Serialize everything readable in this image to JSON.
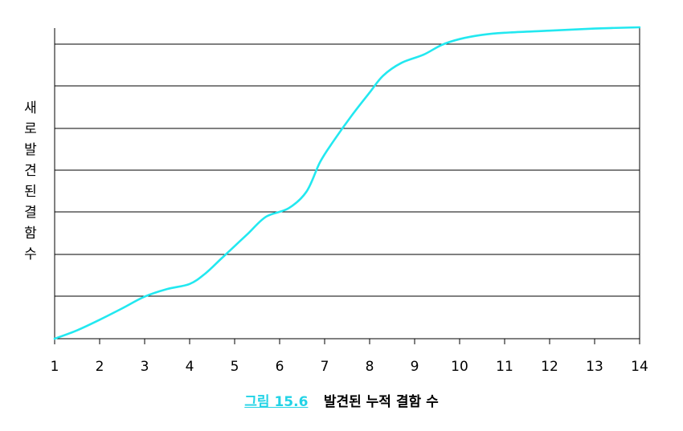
{
  "chart_data": {
    "type": "line",
    "xlabel": "",
    "ylabel": "새로 발견된 결함 수",
    "x_ticks": [
      1,
      2,
      3,
      4,
      5,
      6,
      7,
      8,
      9,
      10,
      11,
      12,
      13,
      14
    ],
    "xlim": [
      1,
      14
    ],
    "ylim": [
      0,
      7.4
    ],
    "grid": "horizontal",
    "series": [
      {
        "color": "#22e8f0",
        "x": [
          1,
          1.5,
          2,
          2.5,
          3,
          3.5,
          4,
          4.35,
          4.7,
          5,
          5.3,
          5.7,
          6.2,
          6.6,
          6.9,
          7.2,
          7.6,
          8,
          8.3,
          8.7,
          9.2,
          9.6,
          10,
          10.5,
          11,
          12,
          13,
          14
        ],
        "y": [
          0,
          0.2,
          0.45,
          0.72,
          1.0,
          1.18,
          1.3,
          1.55,
          1.9,
          2.2,
          2.5,
          2.9,
          3.1,
          3.5,
          4.2,
          4.7,
          5.3,
          5.85,
          6.25,
          6.55,
          6.75,
          6.98,
          7.12,
          7.22,
          7.27,
          7.32,
          7.37,
          7.4
        ]
      }
    ]
  },
  "caption": {
    "label": "그림 15.6",
    "text": "발견된 누적 결함 수"
  }
}
